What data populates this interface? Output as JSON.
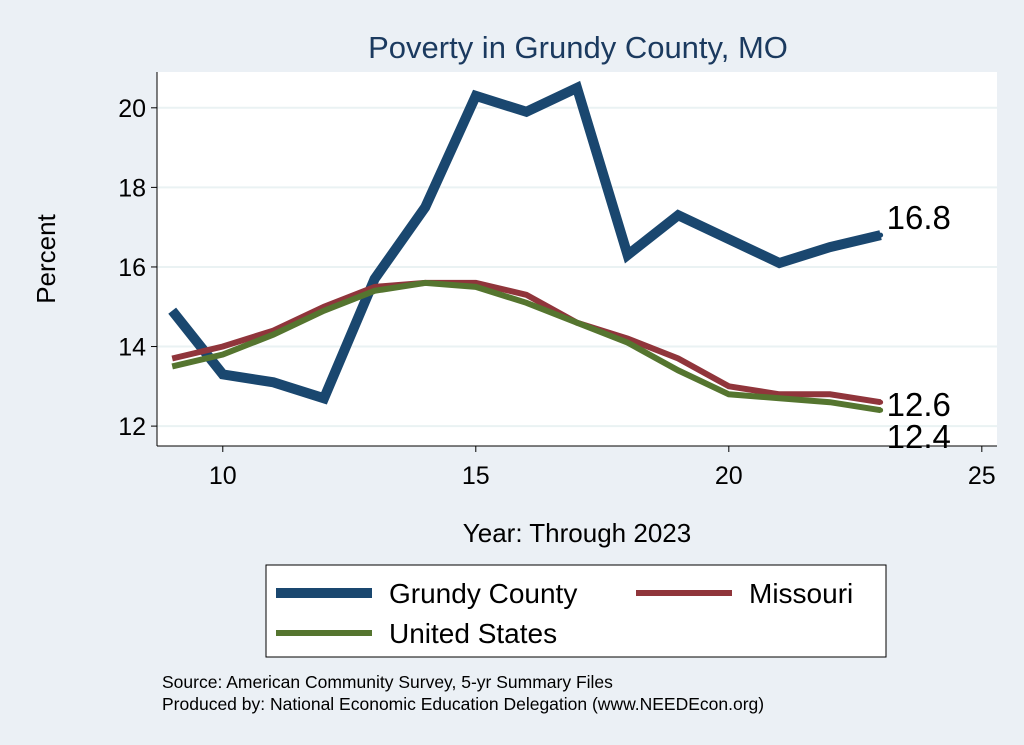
{
  "chart_data": {
    "type": "line",
    "title": "Poverty in Grundy County, MO",
    "xlabel": "Year: Through 2023",
    "ylabel": "Percent",
    "xlim": [
      8.7,
      25.3
    ],
    "ylim": [
      11.5,
      20.9
    ],
    "xticks": [
      10,
      15,
      20,
      25
    ],
    "yticks": [
      12,
      14,
      16,
      18,
      20
    ],
    "xtick_labels": [
      "10",
      "15",
      "20",
      "25"
    ],
    "ytick_labels": [
      "12",
      "14",
      "16",
      "18",
      "20"
    ],
    "grid": true,
    "legend_position": "bottom",
    "series": [
      {
        "name": "Grundy County",
        "color": "#1a476f",
        "x": [
          9,
          10,
          11,
          12,
          13,
          14,
          15,
          16,
          17,
          18,
          19,
          20,
          21,
          22,
          23
        ],
        "values": [
          14.9,
          13.3,
          13.1,
          12.7,
          15.7,
          17.5,
          20.3,
          19.9,
          20.5,
          16.3,
          17.3,
          16.7,
          16.1,
          16.5,
          16.8
        ],
        "end_label": "16.8"
      },
      {
        "name": "Missouri",
        "color": "#90353b",
        "x": [
          9,
          10,
          11,
          12,
          13,
          14,
          15,
          16,
          17,
          18,
          19,
          20,
          21,
          22,
          23
        ],
        "values": [
          13.7,
          14.0,
          14.4,
          15.0,
          15.5,
          15.6,
          15.6,
          15.3,
          14.6,
          14.2,
          13.7,
          13.0,
          12.8,
          12.8,
          12.6
        ],
        "end_label": "12.6"
      },
      {
        "name": "United States",
        "color": "#55752f",
        "x": [
          9,
          10,
          11,
          12,
          13,
          14,
          15,
          16,
          17,
          18,
          19,
          20,
          21,
          22,
          23
        ],
        "values": [
          13.5,
          13.8,
          14.3,
          14.9,
          15.4,
          15.6,
          15.5,
          15.1,
          14.6,
          14.1,
          13.4,
          12.8,
          12.7,
          12.6,
          12.4
        ],
        "end_label": "12.4"
      }
    ]
  },
  "source": {
    "line1": "Source: American Community Survey, 5-yr Summary Files",
    "line2": "Produced by: National Economic Education Delegation (www.NEEDEcon.org)"
  }
}
